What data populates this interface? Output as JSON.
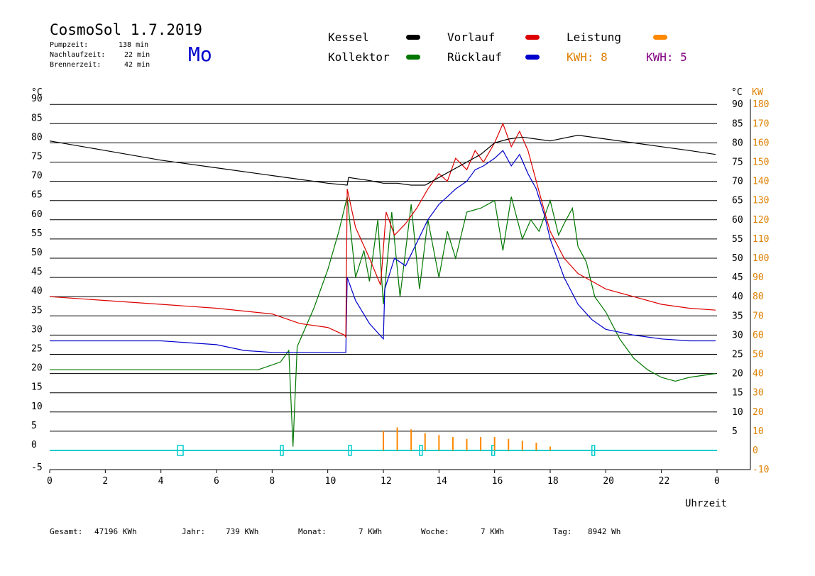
{
  "header": {
    "title": "CosmoSol 1.7.2019",
    "weekday": "Mo",
    "pump_label": "Pumpzeit:",
    "pump_value": "138 min",
    "nachlauf_label": "Nachlaufzeit:",
    "nachlauf_value": "22 min",
    "brenner_label": "Brennerzeit:",
    "brenner_value": "42 min"
  },
  "legend": {
    "kessel": "Kessel",
    "kollektor": "Kollektor",
    "vorlauf": "Vorlauf",
    "ruecklauf": "Rücklauf",
    "leistung": "Leistung",
    "kwh1": "KWH: 8",
    "kwh2": "KWH: 5"
  },
  "axes": {
    "left_unit": "°C",
    "right_unit_c": "°C",
    "right_unit_kw": "KW",
    "x_title": "Uhrzeit"
  },
  "footer": {
    "gesamt_label": "Gesamt:",
    "gesamt_value": "47196 KWh",
    "jahr_label": "Jahr:",
    "jahr_value": "739 KWh",
    "monat_label": "Monat:",
    "monat_value": "7 KWh",
    "woche_label": "Woche:",
    "woche_value": "7 KWh",
    "tag_label": "Tag:",
    "tag_value": "8942 Wh"
  },
  "colors": {
    "kessel": "#000000",
    "kollektor": "#007700",
    "vorlauf": "#dd0000",
    "ruecklauf": "#0000cc",
    "leistung": "#ff8800",
    "kwh2": "#800080",
    "pump": "#00cccc",
    "kw_axis": "#dd8000"
  },
  "chart_data": {
    "type": "line",
    "xlabel": "Uhrzeit",
    "ylabel": "°C",
    "xlim": [
      0,
      24
    ],
    "ylim": [
      -5,
      90
    ],
    "y2lim": [
      -10,
      180
    ],
    "x_ticks": [
      "0",
      "2",
      "4",
      "6",
      "8",
      "10",
      "12",
      "14",
      "16",
      "18",
      "20",
      "22",
      "0"
    ],
    "y_ticks": [
      -5,
      0,
      5,
      10,
      15,
      20,
      25,
      30,
      35,
      40,
      45,
      50,
      55,
      60,
      65,
      70,
      75,
      80,
      85,
      90
    ],
    "y_right_ticks": [
      5,
      10,
      15,
      20,
      25,
      30,
      35,
      40,
      45,
      50,
      55,
      60,
      65,
      70,
      75,
      80,
      85,
      90
    ],
    "y2_ticks": [
      -10,
      0,
      10,
      20,
      30,
      40,
      50,
      60,
      70,
      80,
      90,
      100,
      110,
      120,
      130,
      140,
      150,
      160,
      170,
      180
    ],
    "series": [
      {
        "name": "Kessel",
        "x": [
          0,
          2,
          4,
          6,
          8,
          10,
          10.7,
          10.75,
          11.5,
          12,
          12.5,
          13,
          13.5,
          14,
          14.5,
          15,
          15.5,
          16,
          16.5,
          17,
          17.5,
          18,
          19,
          20,
          21,
          22,
          23,
          23.95
        ],
        "values": [
          80.5,
          78,
          75.5,
          73.5,
          71.5,
          69.5,
          69,
          71,
          70.2,
          69.5,
          69.5,
          69,
          69,
          71,
          73,
          75,
          77,
          80,
          81,
          81.5,
          81,
          80.5,
          82,
          81,
          80,
          79,
          78,
          77
        ]
      },
      {
        "name": "Kollektor",
        "x": [
          0,
          2,
          4,
          6,
          7.5,
          8.3,
          8.6,
          8.75,
          8.9,
          9.5,
          10,
          10.4,
          10.7,
          11,
          11.3,
          11.5,
          11.8,
          12,
          12.3,
          12.6,
          13,
          13.3,
          13.6,
          14,
          14.3,
          14.6,
          15,
          15.5,
          16,
          16.3,
          16.6,
          17,
          17.3,
          17.6,
          18,
          18.3,
          18.5,
          18.8,
          19,
          19.3,
          19.6,
          20,
          20.5,
          21,
          21.5,
          22,
          22.5,
          23,
          23.95
        ],
        "values": [
          21,
          21,
          21,
          21,
          21,
          23,
          26,
          1,
          27,
          37,
          47,
          57,
          66,
          45,
          52,
          44,
          60,
          38,
          62,
          40,
          64,
          42,
          60,
          45,
          57,
          50,
          62,
          63,
          65,
          52,
          66,
          55,
          60,
          57,
          65,
          56,
          59,
          63,
          53,
          49,
          40,
          36,
          29,
          24,
          21,
          19,
          18,
          19,
          20
        ]
      },
      {
        "name": "Vorlauf",
        "x": [
          0,
          2,
          4,
          6,
          8,
          9,
          10,
          10.6,
          10.65,
          10.7,
          11,
          11.5,
          11.9,
          12.1,
          12.4,
          12.8,
          13.2,
          13.6,
          14,
          14.3,
          14.6,
          15,
          15.3,
          15.6,
          16,
          16.3,
          16.6,
          16.9,
          17.2,
          17.5,
          17.8,
          18,
          18.5,
          19,
          19.5,
          20,
          21,
          22,
          23,
          23.95
        ],
        "values": [
          40,
          39,
          38,
          37,
          35.5,
          33,
          32,
          30,
          29.5,
          68,
          58,
          50,
          43,
          62,
          56,
          59,
          63,
          68,
          72,
          70,
          76,
          73,
          78,
          75,
          80,
          85,
          79,
          83,
          78,
          70,
          62,
          57,
          50,
          46,
          44,
          42,
          40,
          38,
          37,
          36.5
        ]
      },
      {
        "name": "Rücklauf",
        "x": [
          0,
          2,
          4,
          6,
          7,
          8,
          9,
          10,
          10.6,
          10.65,
          10.7,
          11,
          11.5,
          12,
          12.05,
          12.4,
          12.8,
          13.2,
          13.6,
          14,
          14.3,
          14.6,
          15,
          15.3,
          15.6,
          16,
          16.3,
          16.6,
          16.9,
          17.2,
          17.5,
          17.8,
          18,
          18.5,
          19,
          19.5,
          20,
          21,
          22,
          23,
          23.95
        ],
        "values": [
          28.5,
          28.5,
          28.5,
          27.5,
          26,
          25.5,
          25.5,
          25.5,
          25.5,
          25.5,
          45,
          39,
          33,
          29,
          42,
          50,
          48,
          54,
          60,
          64,
          66,
          68,
          70,
          73,
          74,
          76,
          78,
          74,
          77,
          72,
          68,
          61,
          55,
          45,
          38,
          34,
          31.5,
          30,
          29,
          28.5,
          28.5
        ]
      },
      {
        "name": "Leistung",
        "x": [
          12,
          12.5,
          13,
          13.5,
          14,
          14.5,
          15,
          15.5,
          16,
          16.5,
          17,
          17.5,
          18
        ],
        "values": [
          10,
          12,
          11,
          9,
          8,
          7,
          6,
          7,
          7,
          6,
          5,
          4,
          2
        ]
      }
    ],
    "pump_intervals": [
      [
        4.6,
        4.8
      ],
      [
        8.3,
        8.4
      ],
      [
        10.75,
        10.85
      ],
      [
        13.3,
        13.4
      ],
      [
        15.9,
        16.0
      ],
      [
        19.5,
        19.6
      ]
    ]
  }
}
